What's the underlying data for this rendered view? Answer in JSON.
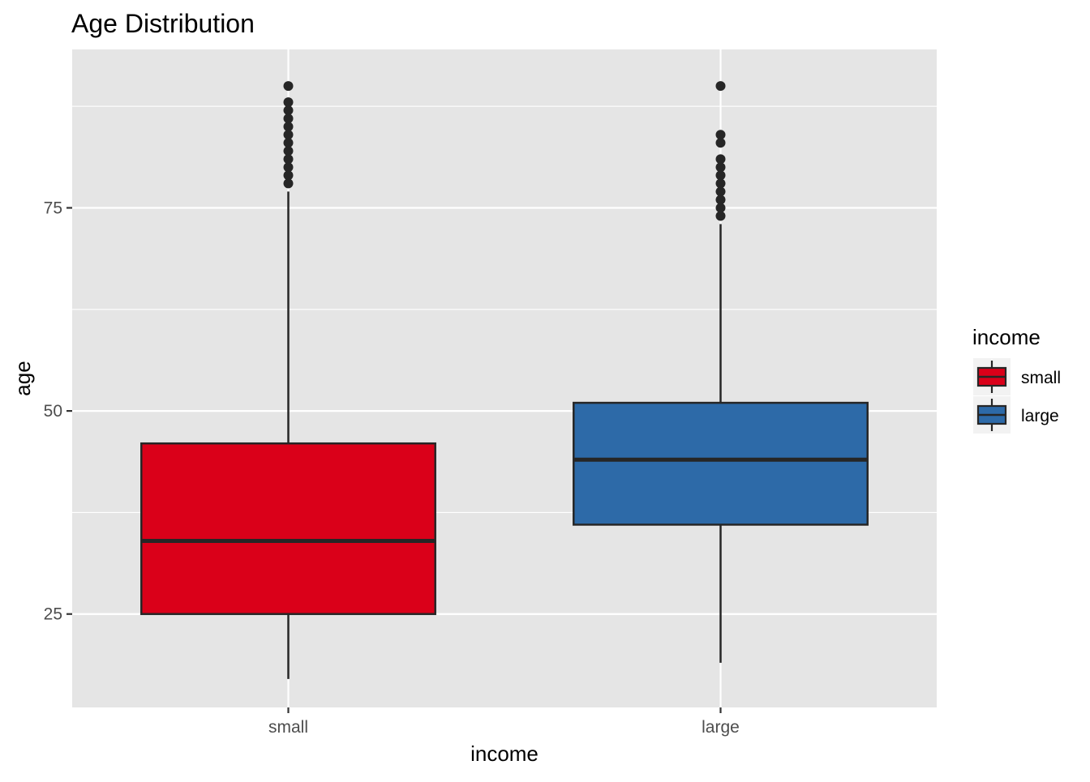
{
  "chart_data": {
    "type": "boxplot",
    "title": "Age Distribution",
    "xlabel": "income",
    "ylabel": "age",
    "categories": [
      "small",
      "large"
    ],
    "ylim": [
      13.5,
      94.5
    ],
    "yticks": [
      25,
      50,
      75
    ],
    "grid": true,
    "legend": {
      "title": "income",
      "position": "right",
      "entries": [
        "small",
        "large"
      ]
    },
    "colors": {
      "small": "#DA0019",
      "large": "#2D6AA8",
      "panel": "#E5E5E5",
      "gridline": "#FFFFFF",
      "outline": "#262626"
    },
    "series": [
      {
        "name": "small",
        "whisker_low": 17,
        "q1": 25,
        "median": 34,
        "q3": 46,
        "whisker_high": 77,
        "outliers": [
          78,
          79,
          80,
          81,
          82,
          83,
          84,
          85,
          86,
          87,
          88,
          90
        ]
      },
      {
        "name": "large",
        "whisker_low": 19,
        "q1": 36,
        "median": 44,
        "q3": 51,
        "whisker_high": 73,
        "outliers": [
          74,
          75,
          76,
          77,
          78,
          79,
          80,
          81,
          83,
          84,
          90
        ]
      }
    ]
  }
}
